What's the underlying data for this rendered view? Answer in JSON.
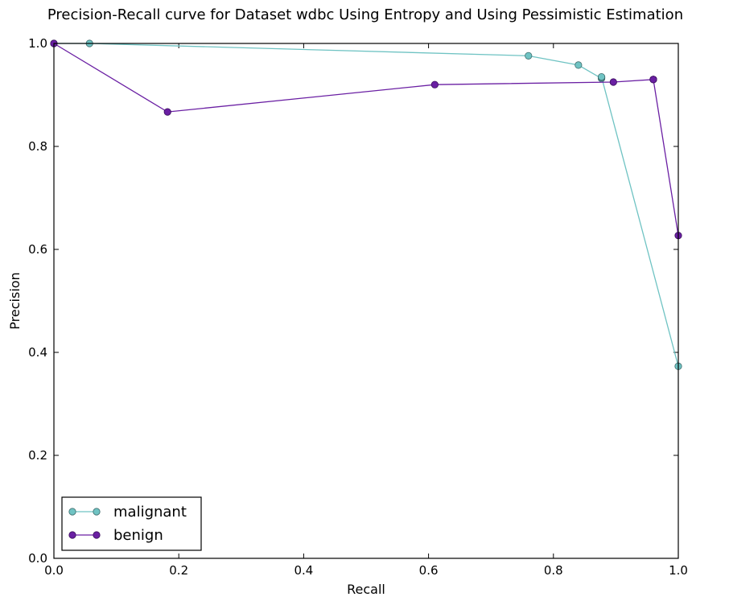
{
  "chart_data": {
    "type": "line",
    "title": "Precision-Recall curve for Dataset wdbc Using Entropy and Using Pessimistic Estimation",
    "xlabel": "Recall",
    "ylabel": "Precision",
    "xlim": [
      0.0,
      1.0
    ],
    "ylim": [
      0.0,
      1.0
    ],
    "xticks": [
      "0.0",
      "0.2",
      "0.4",
      "0.6",
      "0.8",
      "1.0"
    ],
    "yticks": [
      "0.0",
      "0.2",
      "0.4",
      "0.6",
      "0.8",
      "1.0"
    ],
    "grid": false,
    "legend_position": "lower-left",
    "series": [
      {
        "name": "malignant",
        "color": "#6fc3c3",
        "marker_edge": "#3d6b6b",
        "x": [
          0.0,
          0.057,
          0.76,
          0.84,
          0.877,
          0.877,
          0.877,
          0.877,
          1.0
        ],
        "y": [
          1.0,
          1.0,
          0.976,
          0.958,
          0.932,
          0.934,
          0.934,
          0.935,
          0.373
        ]
      },
      {
        "name": "benign",
        "color": "#6a1fa3",
        "marker_edge": "#3a0f5c",
        "x": [
          0.0,
          0.182,
          0.61,
          0.896,
          0.96,
          0.96,
          0.96,
          0.96,
          1.0
        ],
        "y": [
          1.0,
          0.867,
          0.92,
          0.925,
          0.93,
          0.93,
          0.93,
          0.93,
          0.627
        ]
      }
    ]
  }
}
